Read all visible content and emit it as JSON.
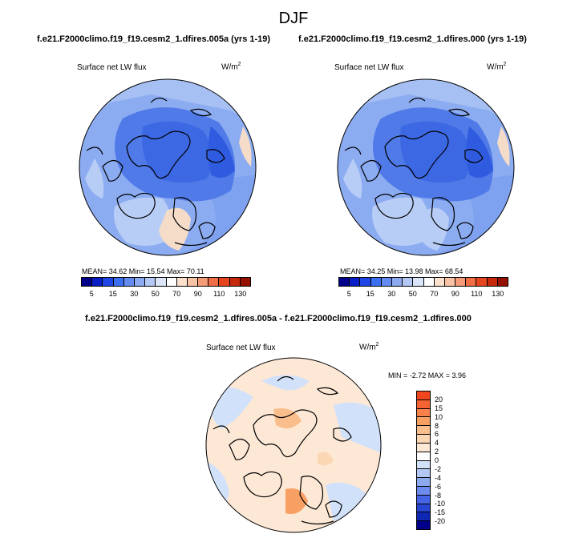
{
  "title": "DJF",
  "panel1": {
    "case": "f.e21.F2000climo.f19_f19.cesm2_1.dfires.005a (yrs 1-19)",
    "variable": "Surface net LW flux",
    "units_base": "W/m",
    "units_exp": "2",
    "stats": "MEAN=  34.62   Min=  15.54   Max=  70.11"
  },
  "panel2": {
    "case": "f.e21.F2000climo.f19_f19.cesm2_1.dfires.000 (yrs 1-19)",
    "variable": "Surface net LW flux",
    "units_base": "W/m",
    "units_exp": "2",
    "stats": "MEAN=  34.25   Min=  13.98   Max=  68.54"
  },
  "diff": {
    "case": "f.e21.F2000climo.f19_f19.cesm2_1.dfires.005a - f.e21.F2000climo.f19_f19.cesm2_1.dfires.000",
    "variable": "Surface net LW flux",
    "units_base": "W/m",
    "units_exp": "2",
    "stats": "MIN =  -2.72  MAX =   3.96"
  },
  "colorbar_main": {
    "colors": [
      "#00008b",
      "#0a1ec8",
      "#1e46e6",
      "#3c6ef0",
      "#648cf0",
      "#8caaf0",
      "#b4c8f5",
      "#dce6fa",
      "#ffffff",
      "#fce1cd",
      "#f8c3a5",
      "#f59b78",
      "#f06e46",
      "#e6461e",
      "#c8280a",
      "#961000"
    ],
    "tick_labels": [
      "5",
      "15",
      "30",
      "50",
      "70",
      "90",
      "110",
      "130"
    ]
  },
  "colorbar_diff": {
    "colors": [
      "#f0461e",
      "#f46432",
      "#f6824b",
      "#f8a064",
      "#fabe8c",
      "#fcd7b4",
      "#fde8d6",
      "#ffffff",
      "#d2e1fa",
      "#b4c8f5",
      "#8caaf0",
      "#6e8cf0",
      "#4664e6",
      "#2846d2",
      "#0f28b4",
      "#00008b"
    ],
    "tick_labels": [
      "20",
      "15",
      "10",
      "8",
      "6",
      "4",
      "2",
      "0",
      "-2",
      "-4",
      "-6",
      "-8",
      "-10",
      "-15",
      "-20"
    ]
  }
}
